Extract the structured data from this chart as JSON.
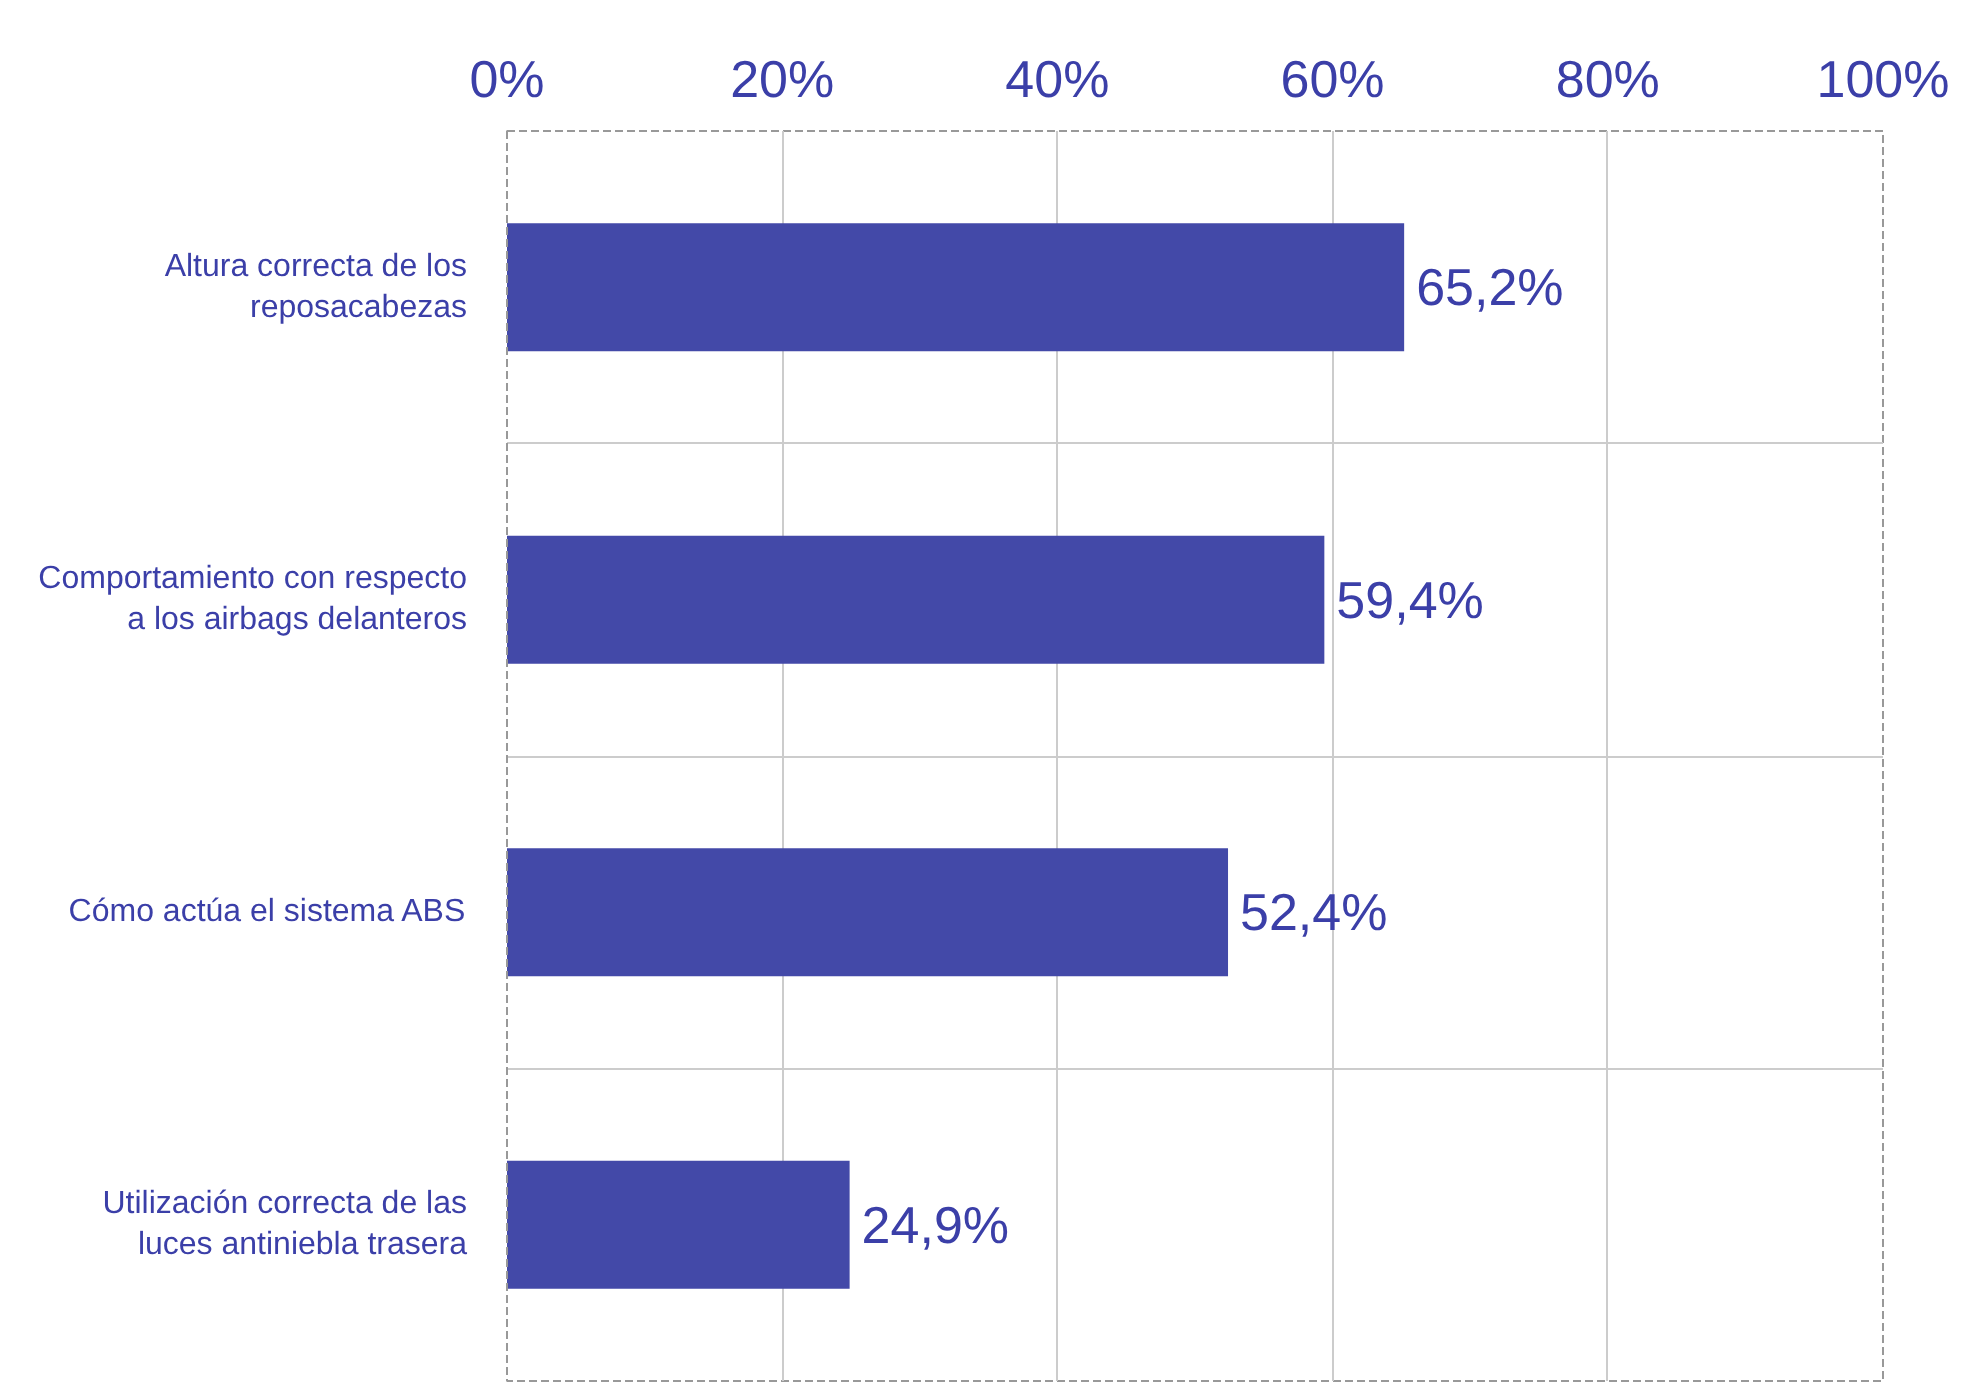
{
  "chart_data": {
    "type": "bar",
    "orientation": "horizontal",
    "categories": [
      "Altura correcta de los reposacabezas",
      "Comportamiento con respecto a los airbags delanteros",
      "Cómo actúa el sistema ABS",
      "Utilización correcta de las luces antiniebla trasera"
    ],
    "values": [
      65.2,
      59.4,
      52.4,
      24.9
    ],
    "value_labels": [
      "65,2%",
      "59,4%",
      "52,4%",
      "24,9%"
    ],
    "color": "#4349a8",
    "xlim": [
      0,
      100
    ],
    "xticks": [
      {
        "value": 0,
        "label": "0%"
      },
      {
        "value": 20,
        "label": "20%"
      },
      {
        "value": 40,
        "label": "40%"
      },
      {
        "value": 60,
        "label": "60%"
      },
      {
        "value": 80,
        "label": "80%"
      },
      {
        "value": 100,
        "label": "100%"
      }
    ],
    "grid": true
  }
}
